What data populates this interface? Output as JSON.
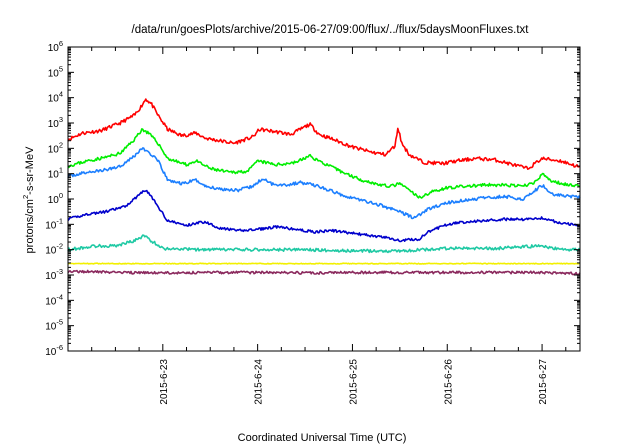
{
  "chart_data": {
    "type": "line",
    "title": "/data/run/goesPlots/archive/2015-06-27/09:00/flux/../flux/5daysMoonFluxes.txt",
    "xlabel": "Coordinated Universal Time (UTC)",
    "ylabel": "protons/cm2-s-sr-MeV",
    "ylabel_parts": {
      "pre": "protons/cm",
      "sup": "2",
      "post": "-s-sr-MeV"
    },
    "yscale": "log",
    "ylim": [
      -6,
      6
    ],
    "y_ticks": [
      {
        "base": "10",
        "exp": "6"
      },
      {
        "base": "10",
        "exp": "5"
      },
      {
        "base": "10",
        "exp": "4"
      },
      {
        "base": "10",
        "exp": "3"
      },
      {
        "base": "10",
        "exp": "2"
      },
      {
        "base": "10",
        "exp": "1"
      },
      {
        "base": "10",
        "exp": "0"
      },
      {
        "base": "10",
        "exp": "-1"
      },
      {
        "base": "10",
        "exp": "-2"
      },
      {
        "base": "10",
        "exp": "-3"
      },
      {
        "base": "10",
        "exp": "-4"
      },
      {
        "base": "10",
        "exp": "-5"
      },
      {
        "base": "10",
        "exp": "-6"
      }
    ],
    "xlim": [
      0,
      5.4
    ],
    "x_ticks": [
      {
        "x": 1,
        "label": "2015-6-23"
      },
      {
        "x": 2,
        "label": "2015-6-24"
      },
      {
        "x": 3,
        "label": "2015-6-25"
      },
      {
        "x": 4,
        "label": "2015-6-26"
      },
      {
        "x": 5,
        "label": "2015-6-27"
      }
    ],
    "grid": false,
    "series": [
      {
        "color": "#ff0000",
        "noise": 0.07,
        "seed": 11,
        "points": [
          [
            0,
            2.35
          ],
          [
            0.15,
            2.6
          ],
          [
            0.35,
            2.7
          ],
          [
            0.55,
            3.0
          ],
          [
            0.7,
            3.3
          ],
          [
            0.78,
            3.7
          ],
          [
            0.82,
            3.95
          ],
          [
            0.88,
            3.75
          ],
          [
            0.95,
            3.3
          ],
          [
            1.05,
            2.75
          ],
          [
            1.2,
            2.5
          ],
          [
            1.35,
            2.6
          ],
          [
            1.45,
            2.4
          ],
          [
            1.6,
            2.3
          ],
          [
            1.75,
            2.2
          ],
          [
            1.95,
            2.45
          ],
          [
            2.02,
            2.75
          ],
          [
            2.2,
            2.65
          ],
          [
            2.35,
            2.55
          ],
          [
            2.45,
            2.75
          ],
          [
            2.55,
            2.95
          ],
          [
            2.65,
            2.55
          ],
          [
            2.8,
            2.35
          ],
          [
            3.0,
            2.05
          ],
          [
            3.2,
            1.85
          ],
          [
            3.35,
            1.75
          ],
          [
            3.45,
            2.1
          ],
          [
            3.48,
            2.85
          ],
          [
            3.52,
            2.2
          ],
          [
            3.6,
            1.75
          ],
          [
            3.75,
            1.45
          ],
          [
            3.95,
            1.4
          ],
          [
            4.1,
            1.5
          ],
          [
            4.3,
            1.6
          ],
          [
            4.5,
            1.55
          ],
          [
            4.7,
            1.35
          ],
          [
            4.85,
            1.2
          ],
          [
            5.0,
            1.6
          ],
          [
            5.2,
            1.5
          ],
          [
            5.4,
            1.25
          ]
        ]
      },
      {
        "color": "#00ee00",
        "noise": 0.06,
        "seed": 23,
        "points": [
          [
            0,
            1.3
          ],
          [
            0.2,
            1.5
          ],
          [
            0.4,
            1.65
          ],
          [
            0.55,
            1.8
          ],
          [
            0.7,
            2.35
          ],
          [
            0.78,
            2.75
          ],
          [
            0.85,
            2.6
          ],
          [
            0.95,
            2.2
          ],
          [
            1.05,
            1.6
          ],
          [
            1.25,
            1.35
          ],
          [
            1.35,
            1.5
          ],
          [
            1.5,
            1.2
          ],
          [
            1.7,
            1.05
          ],
          [
            1.9,
            1.1
          ],
          [
            2.0,
            1.5
          ],
          [
            2.2,
            1.35
          ],
          [
            2.4,
            1.45
          ],
          [
            2.55,
            1.7
          ],
          [
            2.7,
            1.4
          ],
          [
            2.9,
            1.05
          ],
          [
            3.1,
            0.75
          ],
          [
            3.3,
            0.55
          ],
          [
            3.4,
            0.5
          ],
          [
            3.5,
            0.6
          ],
          [
            3.6,
            0.35
          ],
          [
            3.7,
            0.05
          ],
          [
            3.85,
            0.3
          ],
          [
            4.0,
            0.45
          ],
          [
            4.2,
            0.5
          ],
          [
            4.4,
            0.55
          ],
          [
            4.6,
            0.55
          ],
          [
            4.8,
            0.5
          ],
          [
            4.95,
            0.7
          ],
          [
            5.0,
            1.0
          ],
          [
            5.1,
            0.7
          ],
          [
            5.3,
            0.55
          ],
          [
            5.4,
            0.55
          ]
        ]
      },
      {
        "color": "#1c7fff",
        "noise": 0.06,
        "seed": 37,
        "points": [
          [
            0,
            0.9
          ],
          [
            0.2,
            1.05
          ],
          [
            0.4,
            1.15
          ],
          [
            0.55,
            1.3
          ],
          [
            0.7,
            1.7
          ],
          [
            0.78,
            2.0
          ],
          [
            0.85,
            1.85
          ],
          [
            0.95,
            1.5
          ],
          [
            1.05,
            0.75
          ],
          [
            1.2,
            0.6
          ],
          [
            1.35,
            0.75
          ],
          [
            1.45,
            0.5
          ],
          [
            1.6,
            0.4
          ],
          [
            1.8,
            0.35
          ],
          [
            1.95,
            0.5
          ],
          [
            2.05,
            0.8
          ],
          [
            2.15,
            0.6
          ],
          [
            2.3,
            0.55
          ],
          [
            2.45,
            0.65
          ],
          [
            2.6,
            0.55
          ],
          [
            2.75,
            0.35
          ],
          [
            2.9,
            0.15
          ],
          [
            3.1,
            -0.05
          ],
          [
            3.3,
            -0.25
          ],
          [
            3.5,
            -0.5
          ],
          [
            3.65,
            -0.75
          ],
          [
            3.8,
            -0.4
          ],
          [
            4.0,
            -0.15
          ],
          [
            4.2,
            -0.05
          ],
          [
            4.4,
            0.05
          ],
          [
            4.6,
            0.1
          ],
          [
            4.8,
            0.0
          ],
          [
            4.95,
            0.4
          ],
          [
            5.0,
            0.55
          ],
          [
            5.1,
            0.2
          ],
          [
            5.3,
            0.1
          ],
          [
            5.4,
            0.05
          ]
        ]
      },
      {
        "color": "#0000cc",
        "noise": 0.05,
        "seed": 41,
        "points": [
          [
            0,
            -0.8
          ],
          [
            0.2,
            -0.6
          ],
          [
            0.4,
            -0.5
          ],
          [
            0.6,
            -0.3
          ],
          [
            0.7,
            0.0
          ],
          [
            0.8,
            0.35
          ],
          [
            0.85,
            0.25
          ],
          [
            0.95,
            -0.3
          ],
          [
            1.05,
            -0.85
          ],
          [
            1.25,
            -1.05
          ],
          [
            1.35,
            -0.95
          ],
          [
            1.45,
            -0.9
          ],
          [
            1.6,
            -1.15
          ],
          [
            1.8,
            -1.25
          ],
          [
            2.0,
            -1.2
          ],
          [
            2.2,
            -1.1
          ],
          [
            2.4,
            -1.2
          ],
          [
            2.6,
            -1.3
          ],
          [
            2.8,
            -1.25
          ],
          [
            3.0,
            -1.35
          ],
          [
            3.2,
            -1.45
          ],
          [
            3.4,
            -1.55
          ],
          [
            3.5,
            -1.65
          ],
          [
            3.6,
            -1.6
          ],
          [
            3.7,
            -1.6
          ],
          [
            3.8,
            -1.3
          ],
          [
            4.0,
            -1.0
          ],
          [
            4.2,
            -0.9
          ],
          [
            4.4,
            -0.85
          ],
          [
            4.6,
            -0.8
          ],
          [
            4.8,
            -0.8
          ],
          [
            5.0,
            -0.75
          ],
          [
            5.2,
            -0.95
          ],
          [
            5.4,
            -1.05
          ]
        ]
      },
      {
        "color": "#1fc9a4",
        "noise": 0.06,
        "seed": 53,
        "points": [
          [
            0,
            -2.0
          ],
          [
            0.3,
            -1.85
          ],
          [
            0.5,
            -1.85
          ],
          [
            0.7,
            -1.65
          ],
          [
            0.8,
            -1.45
          ],
          [
            0.9,
            -1.7
          ],
          [
            1.0,
            -1.95
          ],
          [
            1.4,
            -2.0
          ],
          [
            2.0,
            -2.0
          ],
          [
            2.5,
            -2.0
          ],
          [
            3.0,
            -2.05
          ],
          [
            3.5,
            -2.05
          ],
          [
            4.0,
            -1.95
          ],
          [
            4.5,
            -1.95
          ],
          [
            5.0,
            -1.85
          ],
          [
            5.2,
            -2.0
          ],
          [
            5.4,
            -2.0
          ]
        ]
      },
      {
        "color": "#f2f000",
        "noise": 0.015,
        "seed": 67,
        "points": [
          [
            0,
            -2.55
          ],
          [
            1.0,
            -2.55
          ],
          [
            2.0,
            -2.55
          ],
          [
            3.0,
            -2.55
          ],
          [
            4.0,
            -2.55
          ],
          [
            5.0,
            -2.55
          ],
          [
            5.4,
            -2.55
          ]
        ]
      },
      {
        "color": "#8b2a5e",
        "noise": 0.05,
        "seed": 79,
        "points": [
          [
            0,
            -2.85
          ],
          [
            0.5,
            -2.9
          ],
          [
            1.0,
            -2.92
          ],
          [
            1.5,
            -2.9
          ],
          [
            2.0,
            -2.9
          ],
          [
            2.5,
            -2.92
          ],
          [
            3.0,
            -2.9
          ],
          [
            3.5,
            -2.9
          ],
          [
            4.0,
            -2.9
          ],
          [
            4.5,
            -2.9
          ],
          [
            5.0,
            -2.9
          ],
          [
            5.4,
            -2.95
          ]
        ]
      }
    ]
  }
}
